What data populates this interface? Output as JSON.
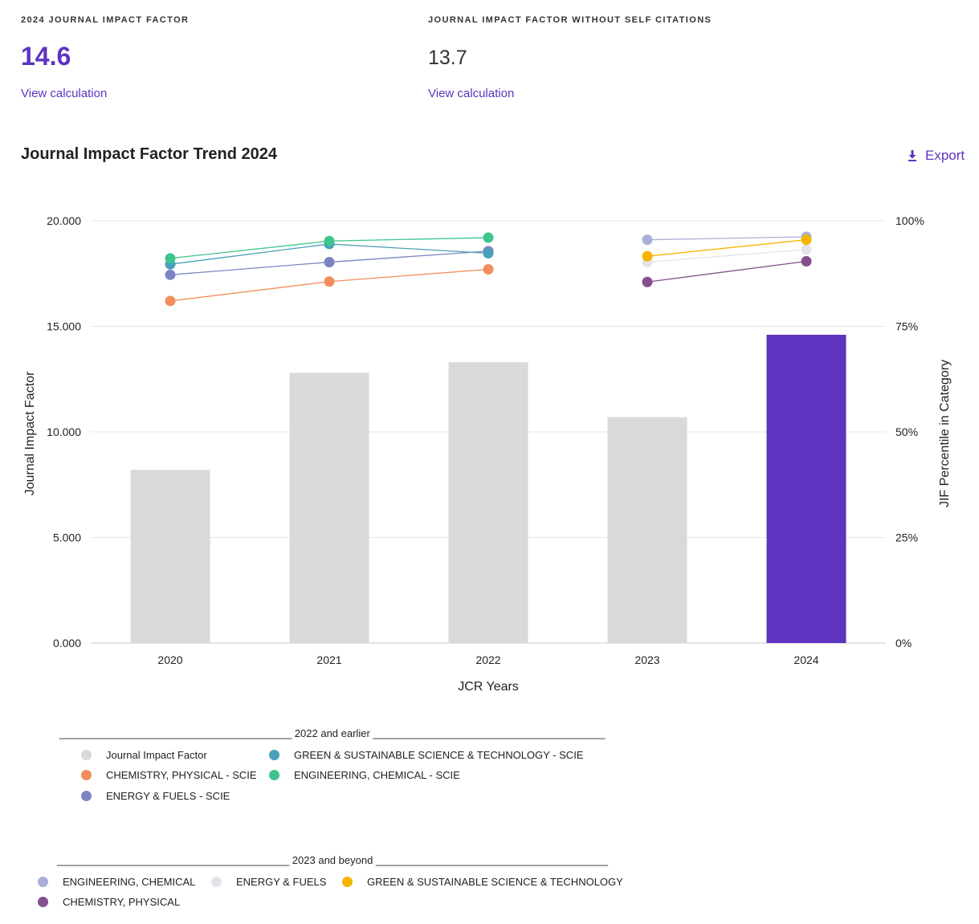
{
  "metrics": {
    "jif_label": "2024 JOURNAL IMPACT FACTOR",
    "jif_value": "14.6",
    "jif_link": "View calculation",
    "jif_no_self_label": "JOURNAL IMPACT FACTOR WITHOUT SELF CITATIONS",
    "jif_no_self_value": "13.7",
    "jif_no_self_link": "View calculation"
  },
  "section": {
    "title": "Journal Impact Factor Trend 2024",
    "export_label": "Export"
  },
  "colors": {
    "accent": "#5e33bf",
    "bar_gray": "#d9d9d9",
    "chem_phys_old": "#f28e5c",
    "energy_old": "#7c84c4",
    "green_old": "#4b9fb8",
    "eng_chem_old": "#3ec58e",
    "eng_chem_new": "#a9afd8",
    "energy_new": "#e3e3ea",
    "green_new": "#f5b400",
    "chem_phys_new": "#84508f"
  },
  "chart_data": {
    "type": "bar",
    "title": "Journal Impact Factor Trend 2024",
    "xlabel": "JCR Years",
    "ylabel": "Journal Impact Factor",
    "y2label": "JIF Percentile in Category",
    "categories": [
      "2020",
      "2021",
      "2022",
      "2023",
      "2024"
    ],
    "ylim": [
      0,
      20
    ],
    "y2lim": [
      0,
      100
    ],
    "y_ticks": [
      "0.000",
      "5.000",
      "10.000",
      "15.000",
      "20.000"
    ],
    "y2_ticks": [
      "0%",
      "25%",
      "50%",
      "75%",
      "100%"
    ],
    "bars": {
      "name": "Journal Impact Factor",
      "values": [
        8.2,
        12.8,
        13.3,
        10.7,
        14.6
      ],
      "highlight_index": 4
    },
    "series": [
      {
        "name": "CHEMISTRY, PHYSICAL - SCIE",
        "group": "2022 and earlier",
        "color_key": "chem_phys_old",
        "values": [
          81.0,
          85.6,
          88.5,
          null,
          null
        ]
      },
      {
        "name": "ENERGY & FUELS - SCIE",
        "group": "2022 and earlier",
        "color_key": "energy_old",
        "values": [
          87.2,
          90.2,
          92.8,
          null,
          null
        ]
      },
      {
        "name": "GREEN & SUSTAINABLE SCIENCE & TECHNOLOGY - SCIE",
        "group": "2022 and earlier",
        "color_key": "green_old",
        "values": [
          89.7,
          94.5,
          92.3,
          null,
          null
        ]
      },
      {
        "name": "ENGINEERING, CHEMICAL - SCIE",
        "group": "2022 and earlier",
        "color_key": "eng_chem_old",
        "values": [
          91.1,
          95.2,
          96.0,
          null,
          null
        ]
      },
      {
        "name": "ENGINEERING, CHEMICAL",
        "group": "2023 and beyond",
        "color_key": "eng_chem_new",
        "values": [
          null,
          null,
          null,
          95.5,
          96.2
        ]
      },
      {
        "name": "ENERGY & FUELS",
        "group": "2023 and beyond",
        "color_key": "energy_new",
        "values": [
          null,
          null,
          null,
          90.2,
          93.2
        ]
      },
      {
        "name": "GREEN & SUSTAINABLE SCIENCE & TECHNOLOGY",
        "group": "2023 and beyond",
        "color_key": "green_new",
        "values": [
          null,
          null,
          null,
          91.6,
          95.5
        ]
      },
      {
        "name": "CHEMISTRY, PHYSICAL",
        "group": "2023 and beyond",
        "color_key": "chem_phys_new",
        "values": [
          null,
          null,
          null,
          85.5,
          90.4
        ]
      }
    ]
  },
  "legend": {
    "group1_title": "________________________________________ 2022 and earlier ________________________________________",
    "group2_title": "________________________________________ 2023 and beyond ________________________________________",
    "group1": {
      "jif": "Journal Impact Factor",
      "chem_phys": "CHEMISTRY, PHYSICAL - SCIE",
      "energy": "ENERGY & FUELS - SCIE",
      "green": "GREEN & SUSTAINABLE SCIENCE & TECHNOLOGY - SCIE",
      "eng_chem": "ENGINEERING, CHEMICAL - SCIE"
    },
    "group2": {
      "eng_chem": "ENGINEERING, CHEMICAL",
      "energy": "ENERGY & FUELS",
      "green": "GREEN & SUSTAINABLE SCIENCE & TECHNOLOGY",
      "chem_phys": "CHEMISTRY, PHYSICAL"
    }
  }
}
